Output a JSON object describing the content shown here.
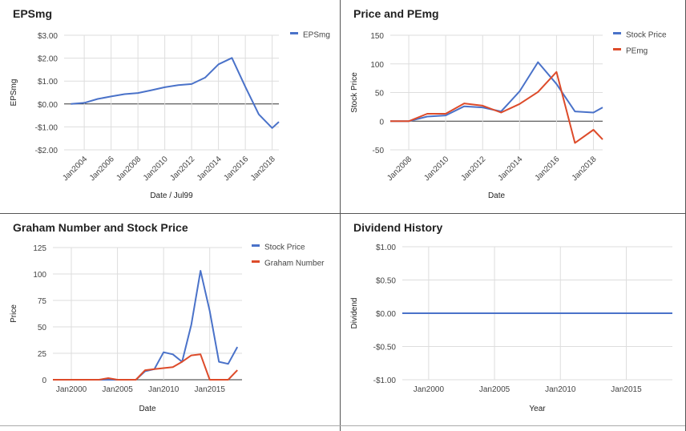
{
  "chart_data": [
    {
      "type": "line",
      "title": "EPSmg",
      "xlabel": "Date / Jul99",
      "ylabel": "EPSmg",
      "xlim": [
        2002.5,
        2018.5
      ],
      "ylim": [
        -2,
        3
      ],
      "yticks": [
        -2,
        -1,
        0,
        1,
        2,
        3
      ],
      "ytick_labels": [
        "-$2.00",
        "-$1.00",
        "$0.00",
        "$1.00",
        "$2.00",
        "$3.00"
      ],
      "xticks": [
        2004,
        2006,
        2008,
        2010,
        2012,
        2014,
        2016,
        2018
      ],
      "xtick_labels": [
        "Jan2004",
        "Jan2006",
        "Jan2008",
        "Jan2010",
        "Jan2012",
        "Jan2014",
        "Jan2016",
        "Jan2018"
      ],
      "legend": "top-right",
      "series": [
        {
          "name": "EPSmg",
          "color": "#4a72c9",
          "x": [
            2003,
            2004,
            2005,
            2006,
            2007,
            2008,
            2009,
            2010,
            2011,
            2012,
            2013,
            2014,
            2015,
            2016,
            2017,
            2018,
            2018.5
          ],
          "y": [
            0,
            0.05,
            0.22,
            0.33,
            0.43,
            0.48,
            0.6,
            0.73,
            0.82,
            0.87,
            1.15,
            1.73,
            2.01,
            0.75,
            -0.45,
            -1.05,
            -0.78
          ]
        }
      ]
    },
    {
      "type": "line",
      "title": "Price and PEmg",
      "xlabel": "Date",
      "ylabel": "Stock Price",
      "xlim": [
        2007,
        2018.5
      ],
      "ylim": [
        -50,
        150
      ],
      "yticks": [
        -50,
        0,
        50,
        100,
        150
      ],
      "ytick_labels": [
        "-50",
        "0",
        "50",
        "100",
        "150"
      ],
      "xticks": [
        2008,
        2010,
        2012,
        2014,
        2016,
        2018
      ],
      "xtick_labels": [
        "Jan2008",
        "Jan2010",
        "Jan2012",
        "Jan2014",
        "Jan2016",
        "Jan2018"
      ],
      "legend": "top-right",
      "series": [
        {
          "name": "Stock Price",
          "color": "#4a72c9",
          "x": [
            2007,
            2008,
            2009,
            2010,
            2011,
            2012,
            2013,
            2014,
            2015,
            2016,
            2017,
            2018,
            2018.5
          ],
          "y": [
            0,
            0,
            8,
            10,
            26,
            24,
            17,
            52,
            103,
            65,
            17,
            15,
            24
          ]
        },
        {
          "name": "PEmg",
          "color": "#dd4b2a",
          "x": [
            2007,
            2008,
            2009,
            2010,
            2011,
            2012,
            2013,
            2014,
            2015,
            2016,
            2017,
            2018,
            2018.5
          ],
          "y": [
            0,
            0,
            13,
            13,
            31,
            27,
            15,
            30,
            51,
            86,
            -38,
            -15,
            -32
          ]
        }
      ]
    },
    {
      "type": "line",
      "title": "Graham Number and Stock Price",
      "xlabel": "Date",
      "ylabel": "Price",
      "xlim": [
        1998,
        2018.5
      ],
      "ylim": [
        0,
        125
      ],
      "yticks": [
        0,
        25,
        50,
        75,
        100,
        125
      ],
      "ytick_labels": [
        "0",
        "25",
        "50",
        "75",
        "100",
        "125"
      ],
      "xticks": [
        2000,
        2005,
        2010,
        2015
      ],
      "xtick_labels": [
        "Jan2000",
        "Jan2005",
        "Jan2010",
        "Jan2015"
      ],
      "legend": "top-right",
      "series": [
        {
          "name": "Stock Price",
          "color": "#4a72c9",
          "x": [
            1998,
            2003,
            2004,
            2005,
            2006,
            2007,
            2008,
            2009,
            2010,
            2011,
            2012,
            2013,
            2014,
            2015,
            2016,
            2017,
            2018
          ],
          "y": [
            0,
            0,
            0,
            0,
            0,
            0,
            8,
            10,
            26,
            24,
            17,
            52,
            103,
            65,
            17,
            15,
            31
          ]
        },
        {
          "name": "Graham Number",
          "color": "#dd4b2a",
          "x": [
            1998,
            2003,
            2004,
            2005,
            2006,
            2007,
            2008,
            2009,
            2010,
            2011,
            2012,
            2013,
            2014,
            2015,
            2016,
            2017,
            2018
          ],
          "y": [
            0,
            0,
            1.5,
            0,
            0,
            0,
            9,
            10,
            11,
            12,
            17,
            23,
            24,
            0,
            0,
            0,
            9
          ]
        }
      ]
    },
    {
      "type": "line",
      "title": "Dividend History",
      "xlabel": "Year",
      "ylabel": "Dividend",
      "xlim": [
        1998,
        2018.5
      ],
      "ylim": [
        -1,
        1
      ],
      "yticks": [
        -1,
        -0.5,
        0,
        0.5,
        1
      ],
      "ytick_labels": [
        "-$1.00",
        "-$0.50",
        "$0.00",
        "$0.50",
        "$1.00"
      ],
      "xticks": [
        2000,
        2005,
        2010,
        2015
      ],
      "xtick_labels": [
        "Jan2000",
        "Jan2005",
        "Jan2010",
        "Jan2015"
      ],
      "series": [
        {
          "color": "#4a72c9",
          "x": [
            1998,
            2018.5
          ],
          "y": [
            0,
            0
          ]
        }
      ]
    }
  ]
}
